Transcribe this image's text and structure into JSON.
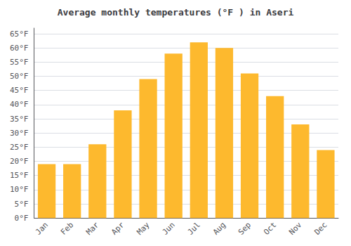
{
  "chart_data": {
    "type": "bar",
    "title": "Average monthly temperatures (°F ) in Aseri",
    "categories": [
      "Jan",
      "Feb",
      "Mar",
      "Apr",
      "May",
      "Jun",
      "Jul",
      "Aug",
      "Sep",
      "Oct",
      "Nov",
      "Dec"
    ],
    "values": [
      19,
      19,
      26,
      38,
      49,
      58,
      62,
      60,
      51,
      43,
      33,
      24
    ],
    "color": "#FDB92E",
    "ylim": [
      0,
      67
    ],
    "yticks": [
      {
        "value": 0,
        "label": "0°F"
      },
      {
        "value": 5,
        "label": "5°F"
      },
      {
        "value": 10,
        "label": "10°F"
      },
      {
        "value": 15,
        "label": "15°F"
      },
      {
        "value": 20,
        "label": "20°F"
      },
      {
        "value": 25,
        "label": "25°F"
      },
      {
        "value": 30,
        "label": "30°F"
      },
      {
        "value": 35,
        "label": "35°F"
      },
      {
        "value": 40,
        "label": "40°F"
      },
      {
        "value": 45,
        "label": "45°F"
      },
      {
        "value": 50,
        "label": "50°F"
      },
      {
        "value": 55,
        "label": "55°F"
      },
      {
        "value": 60,
        "label": "60°F"
      },
      {
        "value": 65,
        "label": "65°F"
      }
    ],
    "grid": true
  }
}
